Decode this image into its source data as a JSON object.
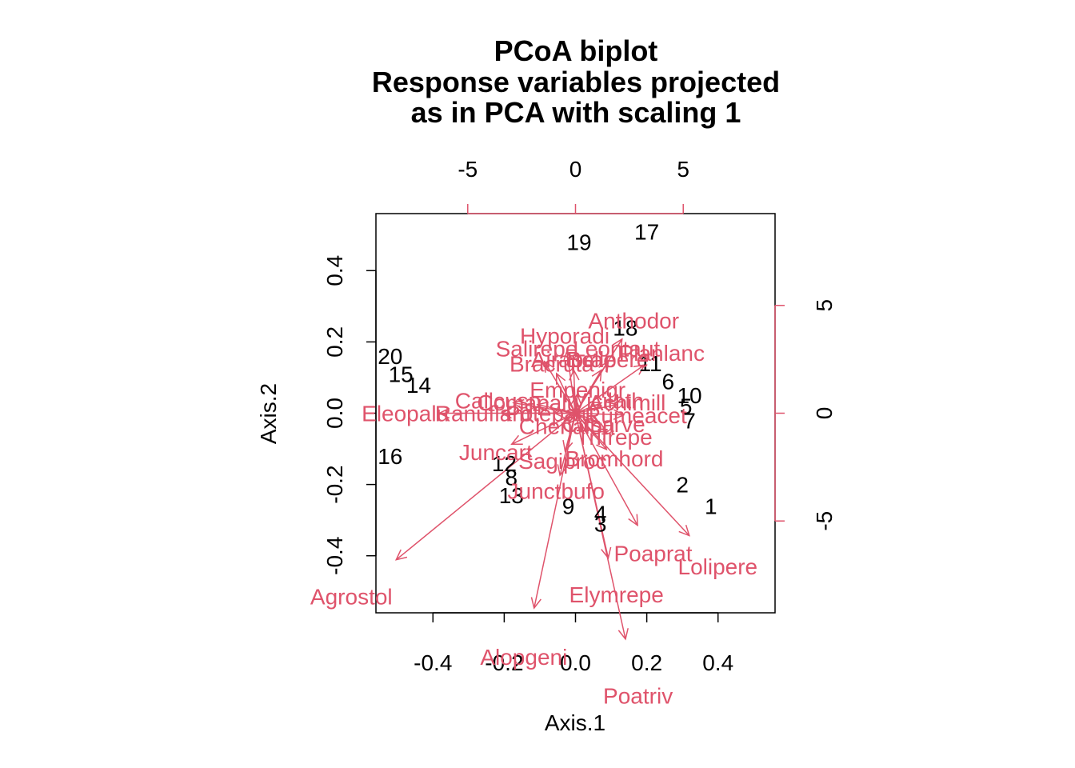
{
  "chart_data": {
    "type": "scatter",
    "title": [
      "PCoA biplot",
      "Response variables projected",
      "as in PCA with scaling 1"
    ],
    "xlabel": "Axis.1",
    "ylabel": "Axis.2",
    "xlim": [
      -0.56,
      0.56
    ],
    "ylim": [
      -0.56,
      0.56
    ],
    "x_ticks": [
      -0.4,
      -0.2,
      0.0,
      0.2,
      0.4
    ],
    "x_tick_labels": [
      "-0.4",
      "-0.2",
      "0.0",
      "0.2",
      "0.4"
    ],
    "y_ticks": [
      -0.4,
      -0.2,
      0.0,
      0.2,
      0.4
    ],
    "y_tick_labels": [
      "-0.4",
      "-0.2",
      "0.0",
      "0.2",
      "0.4"
    ],
    "secondary_ticks": [
      -5,
      0,
      5
    ],
    "secondary_tick_labels": [
      "-5",
      "0",
      "5"
    ],
    "secondary_range": [
      -9.26,
      9.26
    ],
    "species_color": "#DF536B",
    "site_color": "#000000",
    "sites": [
      {
        "label": "1",
        "x": 0.38,
        "y": -0.26
      },
      {
        "label": "2",
        "x": 0.3,
        "y": -0.2
      },
      {
        "label": "3",
        "x": 0.07,
        "y": -0.31
      },
      {
        "label": "4",
        "x": 0.07,
        "y": -0.28
      },
      {
        "label": "5",
        "x": 0.31,
        "y": 0.02
      },
      {
        "label": "6",
        "x": 0.26,
        "y": 0.09
      },
      {
        "label": "7",
        "x": 0.32,
        "y": -0.02
      },
      {
        "label": "8",
        "x": -0.18,
        "y": -0.18
      },
      {
        "label": "9",
        "x": -0.02,
        "y": -0.26
      },
      {
        "label": "10",
        "x": 0.32,
        "y": 0.05
      },
      {
        "label": "11",
        "x": 0.21,
        "y": 0.14
      },
      {
        "label": "12",
        "x": -0.2,
        "y": -0.14
      },
      {
        "label": "13",
        "x": -0.18,
        "y": -0.23
      },
      {
        "label": "14",
        "x": -0.44,
        "y": 0.08
      },
      {
        "label": "15",
        "x": -0.49,
        "y": 0.11
      },
      {
        "label": "16",
        "x": -0.52,
        "y": -0.12
      },
      {
        "label": "17",
        "x": 0.2,
        "y": 0.51
      },
      {
        "label": "18",
        "x": 0.14,
        "y": 0.24
      },
      {
        "label": "19",
        "x": 0.01,
        "y": 0.48
      },
      {
        "label": "20",
        "x": -0.52,
        "y": 0.16
      }
    ],
    "species": [
      {
        "label": "Agrostol",
        "x": -10.4,
        "y": -8.5
      },
      {
        "label": "Alopgeni",
        "x": -2.4,
        "y": -11.3
      },
      {
        "label": "Poatriv",
        "x": 2.9,
        "y": -13.1
      },
      {
        "label": "Elymrepe",
        "x": 1.9,
        "y": -8.4
      },
      {
        "label": "Lolipere",
        "x": 6.6,
        "y": -7.1
      },
      {
        "label": "Poaprat",
        "x": 3.6,
        "y": -6.5
      },
      {
        "label": "Junctbufo",
        "x": -0.9,
        "y": -3.6
      },
      {
        "label": "Juncart",
        "x": -3.7,
        "y": -1.8
      },
      {
        "label": "Sagiproc",
        "x": -0.6,
        "y": -2.2
      },
      {
        "label": "Bromhord",
        "x": 1.8,
        "y": -2.1
      },
      {
        "label": "Trifrepe",
        "x": 1.8,
        "y": -1.1
      },
      {
        "label": "Eleopalu",
        "x": -7.9,
        "y": 0.0
      },
      {
        "label": "Ranuflam",
        "x": -4.3,
        "y": 0.0
      },
      {
        "label": "Callcusp",
        "x": -3.6,
        "y": 0.6
      },
      {
        "label": "Comapalu",
        "x": -2.2,
        "y": 0.5
      },
      {
        "label": "Potepalu",
        "x": -1.2,
        "y": 0.0
      },
      {
        "label": "Chenalbu",
        "x": -0.4,
        "y": -0.6
      },
      {
        "label": "Empenigr",
        "x": 0.1,
        "y": 1.1
      },
      {
        "label": "Rumeacet",
        "x": 2.8,
        "y": -0.1
      },
      {
        "label": "Achimill",
        "x": 2.4,
        "y": 0.5
      },
      {
        "label": "Vicilath",
        "x": 1.5,
        "y": 0.6
      },
      {
        "label": "Cirsarve",
        "x": 1.3,
        "y": -0.5
      },
      {
        "label": "Bracruta",
        "x": -1.1,
        "y": 2.3
      },
      {
        "label": "Salirepe",
        "x": -1.8,
        "y": 3.0
      },
      {
        "label": "Airaprae",
        "x": -0.1,
        "y": 2.5
      },
      {
        "label": "Hyporadi",
        "x": -0.5,
        "y": 3.6
      },
      {
        "label": "Anthodor",
        "x": 2.7,
        "y": 4.3
      },
      {
        "label": "Planlanc",
        "x": 4.0,
        "y": 2.8
      },
      {
        "label": "Bellpere",
        "x": 1.5,
        "y": 2.5
      },
      {
        "label": "Leontaut",
        "x": 1.9,
        "y": 3.0
      }
    ]
  }
}
